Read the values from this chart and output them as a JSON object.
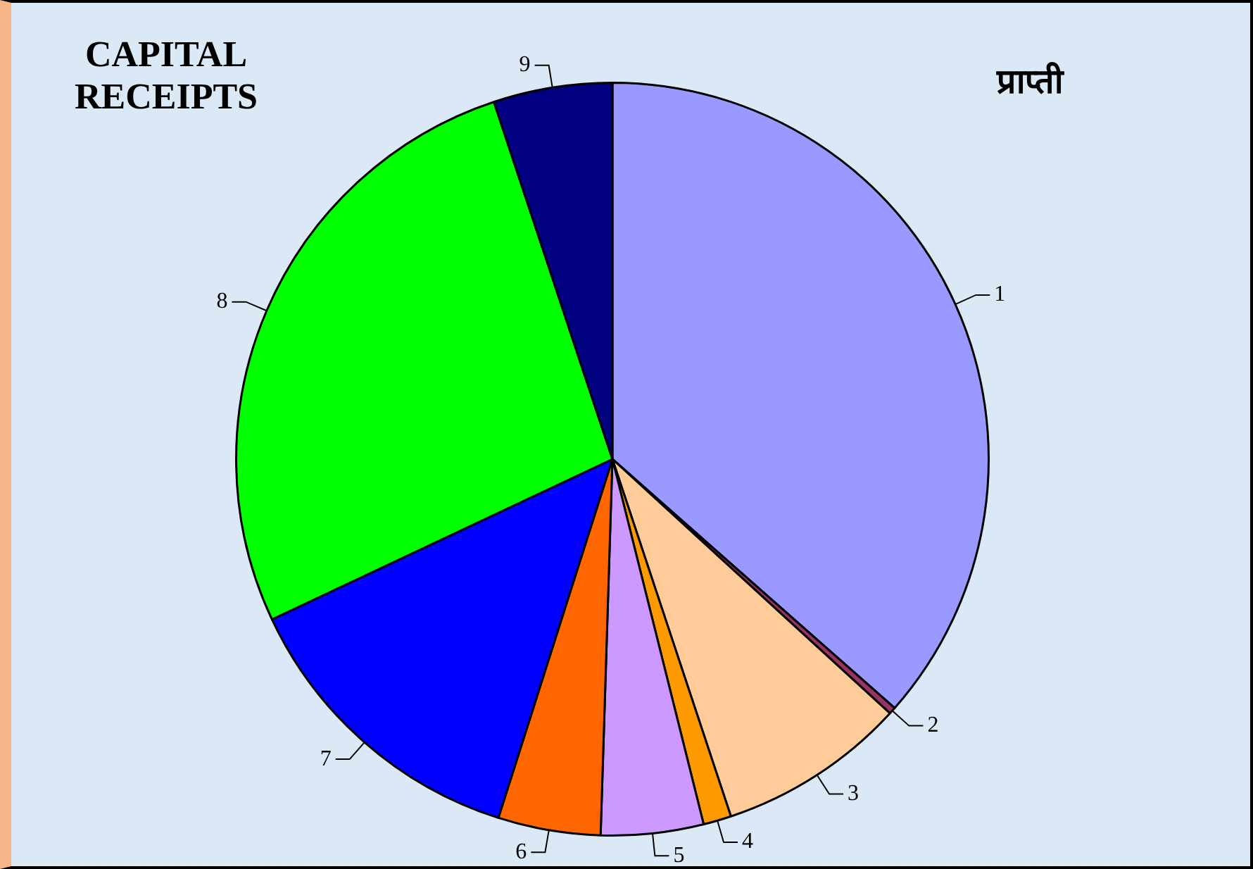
{
  "chart_data": {
    "type": "pie",
    "title": "CAPITAL\nRECEIPTS",
    "subtitle": "प्राप्ती",
    "categories": [
      "1",
      "2",
      "3",
      "4",
      "5",
      "6",
      "7",
      "8",
      "9"
    ],
    "values": [
      36.5,
      0.3,
      8.1,
      1.2,
      4.4,
      4.4,
      13.1,
      26.9,
      5.1
    ],
    "colors": [
      "#9999ff",
      "#993366",
      "#ffcc99",
      "#ff9900",
      "#cc99ff",
      "#ff6600",
      "#0000ff",
      "#00ff00",
      "#000080"
    ],
    "legend": false
  }
}
